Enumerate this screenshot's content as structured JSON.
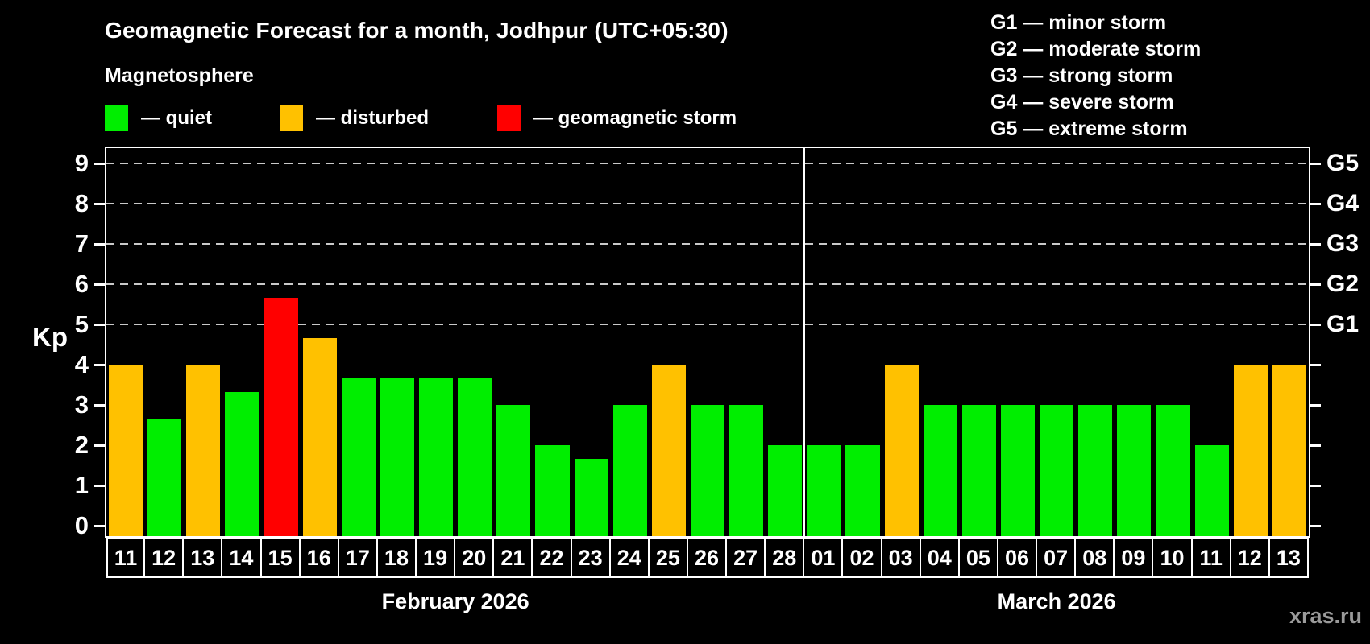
{
  "title": "Geomagnetic Forecast for a month, Jodhpur (UTC+05:30)",
  "subtitle": "Magnetosphere",
  "legend": {
    "items": [
      {
        "key": "quiet",
        "label": "— quiet"
      },
      {
        "key": "disturbed",
        "label": "— disturbed"
      },
      {
        "key": "storm",
        "label": "— geomagnetic storm"
      }
    ]
  },
  "g_legend": [
    "G1 — minor storm",
    "G2 — moderate storm",
    "G3 — strong storm",
    "G4 — severe storm",
    "G5 — extreme storm"
  ],
  "colors": {
    "quiet": "#00ee00",
    "disturbed": "#ffc100",
    "storm": "#ff0000",
    "grid": "#c9c9c9",
    "axis": "#ffffff",
    "watermark": "#9a9a9a"
  },
  "axis": {
    "y_label": "Kp",
    "y_ticks": [
      0,
      1,
      2,
      3,
      4,
      5,
      6,
      7,
      8,
      9
    ],
    "gridlines_kp": [
      5,
      6,
      7,
      8,
      9
    ],
    "g_ticks": [
      {
        "label": "G1",
        "kp": 5
      },
      {
        "label": "G2",
        "kp": 6
      },
      {
        "label": "G3",
        "kp": 7
      },
      {
        "label": "G4",
        "kp": 8
      },
      {
        "label": "G5",
        "kp": 9
      }
    ]
  },
  "watermark": "xras.ru",
  "chart_data": {
    "type": "bar",
    "title": "Geomagnetic Forecast for a month, Jodhpur (UTC+05:30)",
    "xlabel": "",
    "ylabel": "Kp",
    "ylim": [
      0,
      9.4
    ],
    "grid": "horizontal dashed lines at Kp 5,6,7,8,9 (G1..G5)",
    "legend_position": "top-left",
    "sections": [
      {
        "month": "February 2026",
        "days": [
          "11",
          "12",
          "13",
          "14",
          "15",
          "16",
          "17",
          "18",
          "19",
          "20",
          "21",
          "22",
          "23",
          "24",
          "25",
          "26",
          "27",
          "28"
        ],
        "values": [
          4.0,
          2.67,
          4.0,
          3.33,
          5.67,
          4.67,
          3.67,
          3.67,
          3.67,
          3.67,
          3.0,
          2.0,
          1.67,
          3.0,
          4.0,
          3.0,
          3.0,
          2.0
        ],
        "status": [
          "disturbed",
          "quiet",
          "disturbed",
          "quiet",
          "storm",
          "disturbed",
          "quiet",
          "quiet",
          "quiet",
          "quiet",
          "quiet",
          "quiet",
          "quiet",
          "quiet",
          "disturbed",
          "quiet",
          "quiet",
          "quiet"
        ]
      },
      {
        "month": "March 2026",
        "days": [
          "01",
          "02",
          "03",
          "04",
          "05",
          "06",
          "07",
          "08",
          "09",
          "10",
          "11",
          "12",
          "13"
        ],
        "values": [
          2.0,
          2.0,
          4.0,
          3.0,
          3.0,
          3.0,
          3.0,
          3.0,
          3.0,
          3.0,
          2.0,
          4.0,
          4.0
        ],
        "status": [
          "quiet",
          "quiet",
          "disturbed",
          "quiet",
          "quiet",
          "quiet",
          "quiet",
          "quiet",
          "quiet",
          "quiet",
          "quiet",
          "disturbed",
          "disturbed"
        ]
      }
    ]
  }
}
